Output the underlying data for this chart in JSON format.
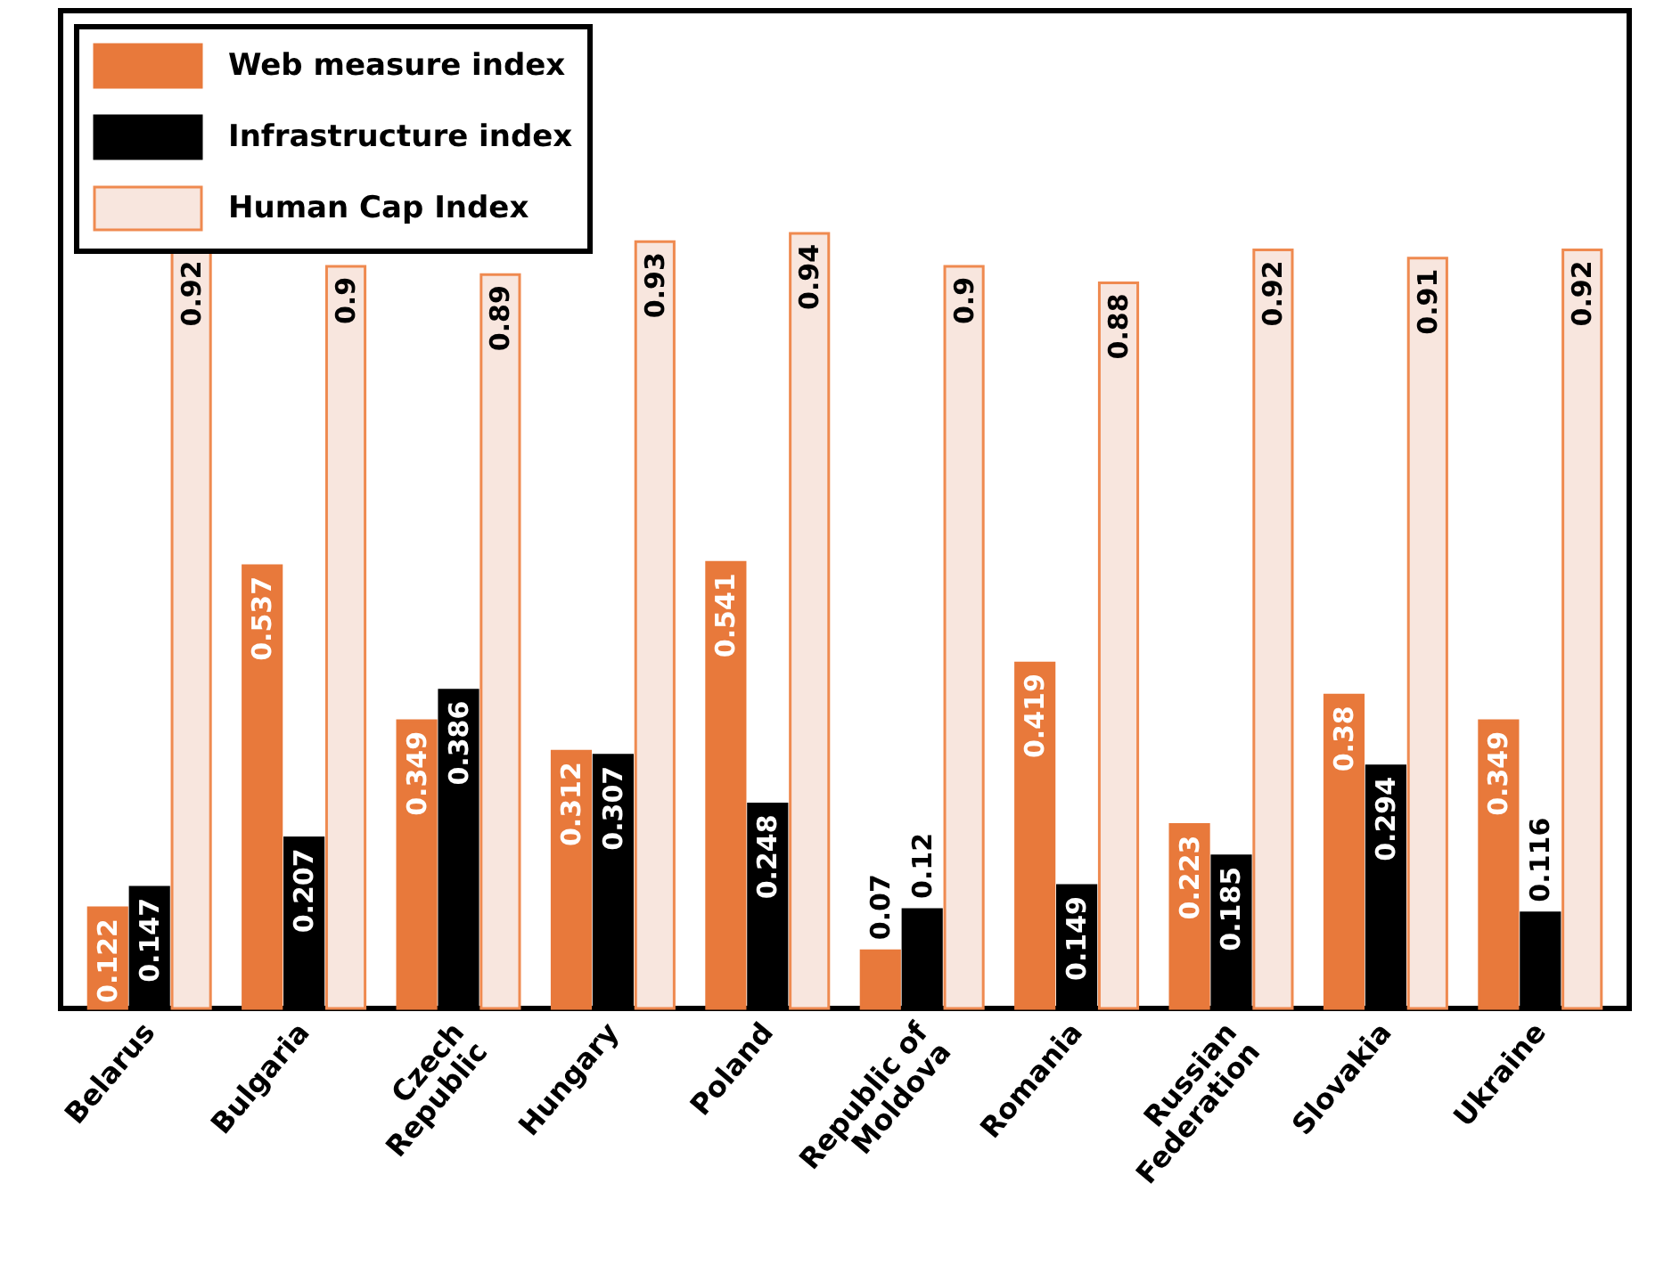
{
  "chart_data": {
    "type": "bar",
    "categories": [
      "Belarus",
      "Bulgaria",
      "Czech Republic",
      "Hungary",
      "Poland",
      "Republic of Moldova",
      "Romania",
      "Russian Federation",
      "Slovakia",
      "Ukraine"
    ],
    "series": [
      {
        "name": "Web measure index",
        "color": "#e8793b",
        "values": [
          0.122,
          0.537,
          0.349,
          0.312,
          0.541,
          0.07,
          0.419,
          0.223,
          0.38,
          0.349
        ]
      },
      {
        "name": "Infrastructure index",
        "color": "#000000",
        "values": [
          0.147,
          0.207,
          0.386,
          0.307,
          0.248,
          0.12,
          0.149,
          0.185,
          0.294,
          0.116
        ]
      },
      {
        "name": "Human Cap Index",
        "color": "#f8e6de",
        "values": [
          0.92,
          0.9,
          0.89,
          0.93,
          0.94,
          0.9,
          0.88,
          0.92,
          0.91,
          0.92
        ]
      }
    ],
    "ylim": [
      0,
      1.21
    ],
    "tick_labels": "x",
    "data_labels": true,
    "legend": "top left"
  }
}
